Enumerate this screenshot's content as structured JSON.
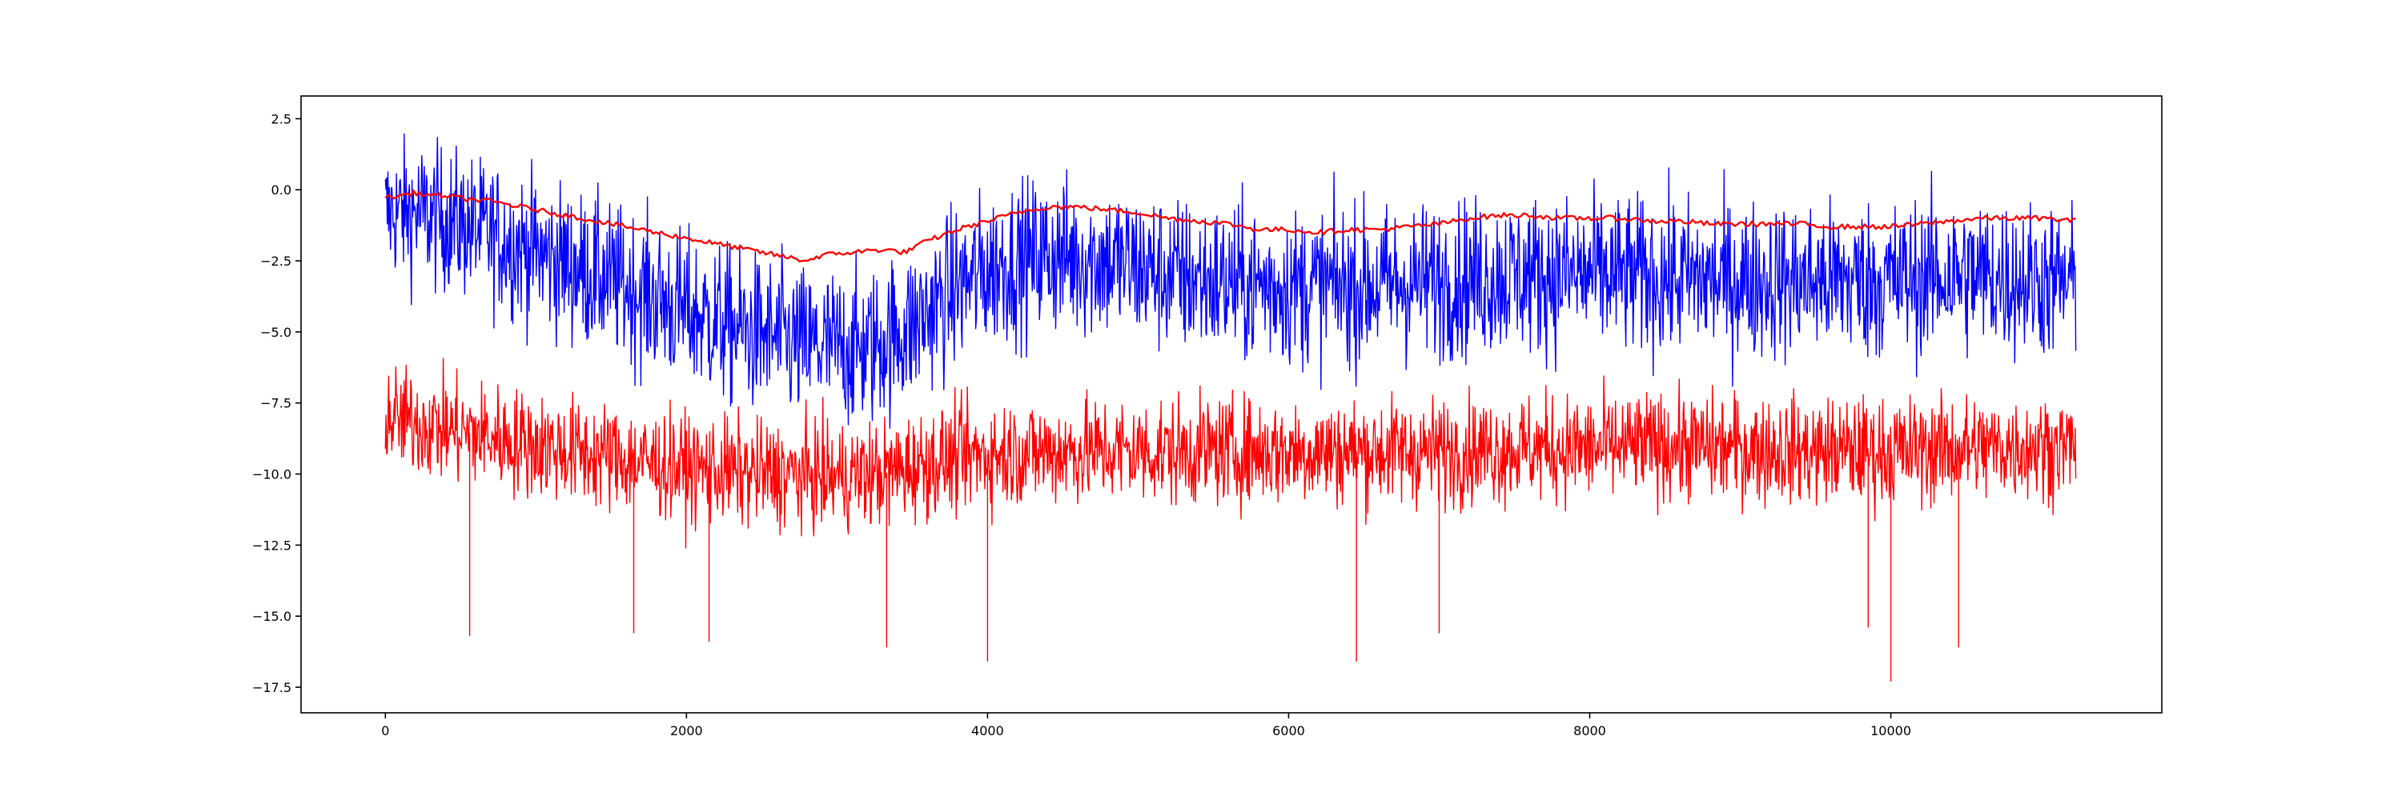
{
  "chart_data": {
    "type": "line",
    "xlim": [
      -560,
      11800
    ],
    "ylim": [
      -18.4,
      3.3
    ],
    "xticks": [
      0,
      2000,
      4000,
      6000,
      8000,
      10000
    ],
    "xtick_labels": [
      "0",
      "2000",
      "4000",
      "6000",
      "8000",
      "10000"
    ],
    "yticks": [
      2.5,
      0.0,
      -2.5,
      -5.0,
      -7.5,
      -10.0,
      -12.5,
      -15.0,
      -17.5
    ],
    "ytick_labels": [
      "2.5",
      "0.0",
      "−2.5",
      "−5.0",
      "−7.5",
      "−10.0",
      "−12.5",
      "−15.0",
      "−17.5"
    ],
    "grid": false,
    "x_count": 11230,
    "series": [
      {
        "color": "#0000ff",
        "render": "envelope",
        "x": [
          0,
          200,
          500,
          800,
          1200,
          1600,
          2000,
          2400,
          2800,
          3200,
          3500,
          3800,
          4100,
          4400,
          4800,
          5200,
          5600,
          6000,
          6500,
          7000,
          7500,
          8000,
          8500,
          9000,
          9500,
          10000,
          10500,
          11230
        ],
        "center": [
          -0.8,
          -0.8,
          -1.2,
          -1.8,
          -2.6,
          -3.4,
          -4.3,
          -5.0,
          -5.5,
          -5.6,
          -4.8,
          -3.4,
          -2.6,
          -2.3,
          -2.5,
          -3.0,
          -3.3,
          -3.4,
          -3.4,
          -3.2,
          -3.0,
          -3.0,
          -3.1,
          -3.2,
          -3.2,
          -3.2,
          -3.0,
          -3.3
        ],
        "spread": [
          2.6,
          2.8,
          2.8,
          2.9,
          3.0,
          3.0,
          3.1,
          3.1,
          3.1,
          3.1,
          3.1,
          3.1,
          3.1,
          3.1,
          3.1,
          3.1,
          3.1,
          3.1,
          3.1,
          3.1,
          3.1,
          3.1,
          3.1,
          3.1,
          3.1,
          3.1,
          3.1,
          3.0
        ]
      },
      {
        "color": "#ff0000",
        "render": "envelope",
        "x": [
          0,
          300,
          600,
          1000,
          1500,
          2000,
          2500,
          3000,
          3300,
          3600,
          4000,
          4500,
          5000,
          5500,
          6000,
          6500,
          7000,
          7500,
          8000,
          8500,
          9000,
          9500,
          10000,
          10500,
          11230
        ],
        "center": [
          -8.0,
          -8.3,
          -8.6,
          -9.0,
          -9.4,
          -9.8,
          -10.0,
          -10.1,
          -10.0,
          -9.6,
          -9.3,
          -9.2,
          -9.2,
          -9.2,
          -9.2,
          -9.2,
          -9.2,
          -9.1,
          -9.1,
          -9.0,
          -9.1,
          -9.2,
          -9.2,
          -9.1,
          -9.0
        ],
        "spread": [
          2.0,
          2.1,
          2.1,
          2.1,
          2.1,
          2.1,
          2.1,
          2.1,
          2.1,
          2.1,
          2.1,
          2.1,
          2.1,
          2.1,
          2.1,
          2.1,
          2.1,
          2.1,
          2.1,
          2.1,
          2.1,
          2.1,
          2.1,
          2.1,
          2.0
        ],
        "spikes": [
          {
            "x": 560,
            "y": -15.7
          },
          {
            "x": 1650,
            "y": -15.6
          },
          {
            "x": 2150,
            "y": -15.9
          },
          {
            "x": 3330,
            "y": -16.1
          },
          {
            "x": 4000,
            "y": -16.6
          },
          {
            "x": 6450,
            "y": -16.6
          },
          {
            "x": 7000,
            "y": -15.6
          },
          {
            "x": 9850,
            "y": -15.4
          },
          {
            "x": 10000,
            "y": -17.3
          },
          {
            "x": 10450,
            "y": -16.1
          }
        ]
      },
      {
        "color": "#ff0000",
        "render": "line",
        "x": [
          0,
          100,
          200,
          300,
          400,
          500,
          700,
          900,
          1100,
          1300,
          1500,
          1700,
          1900,
          2100,
          2300,
          2500,
          2700,
          2800,
          2900,
          3100,
          3300,
          3450,
          3600,
          3800,
          4000,
          4200,
          4400,
          4600,
          4800,
          5000,
          5200,
          5400,
          5600,
          5800,
          6000,
          6200,
          6400,
          6600,
          6800,
          7000,
          7200,
          7400,
          7600,
          7800,
          8000,
          8200,
          8400,
          8600,
          8800,
          9000,
          9200,
          9400,
          9600,
          9800,
          10000,
          10200,
          10400,
          10600,
          10800,
          11000,
          11230
        ],
        "y": [
          -0.3,
          -0.2,
          -0.1,
          -0.2,
          -0.2,
          -0.3,
          -0.4,
          -0.6,
          -0.8,
          -1.0,
          -1.2,
          -1.4,
          -1.6,
          -1.8,
          -2.0,
          -2.2,
          -2.4,
          -2.5,
          -2.3,
          -2.2,
          -2.1,
          -2.2,
          -1.8,
          -1.4,
          -1.1,
          -0.8,
          -0.6,
          -0.6,
          -0.7,
          -0.8,
          -1.0,
          -1.1,
          -1.2,
          -1.4,
          -1.4,
          -1.5,
          -1.4,
          -1.4,
          -1.3,
          -1.2,
          -1.0,
          -0.9,
          -0.9,
          -1.0,
          -1.0,
          -1.0,
          -1.1,
          -1.1,
          -1.2,
          -1.2,
          -1.2,
          -1.2,
          -1.3,
          -1.3,
          -1.3,
          -1.2,
          -1.1,
          -1.0,
          -1.0,
          -1.0,
          -1.1
        ]
      }
    ]
  }
}
